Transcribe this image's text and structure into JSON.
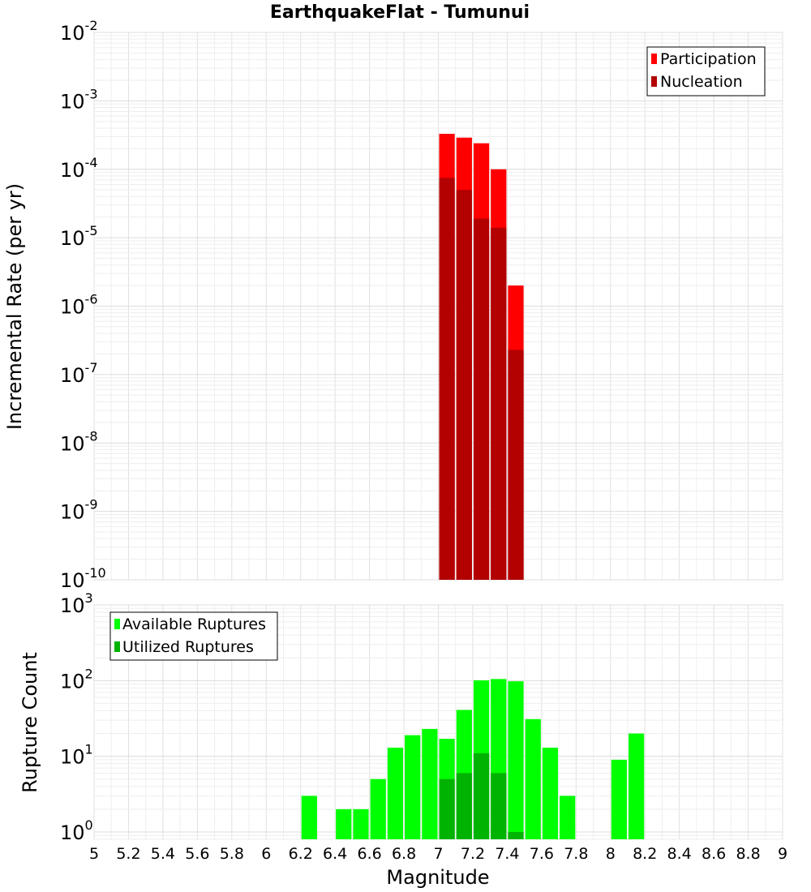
{
  "chart_data": [
    {
      "type": "bar",
      "title": "EarthquakeFlat - Tumunui",
      "ylabel": "Incremental Rate (per yr)",
      "xlabel": "",
      "yscale": "log",
      "ylim": [
        1e-10,
        0.01
      ],
      "xlim": [
        5,
        9
      ],
      "bin_width": 0.1,
      "y_ticks": [
        {
          "base": "10",
          "exp": "-10",
          "value": 1e-10
        },
        {
          "base": "10",
          "exp": "-9",
          "value": 1e-09
        },
        {
          "base": "10",
          "exp": "-8",
          "value": 1e-08
        },
        {
          "base": "10",
          "exp": "-7",
          "value": 1e-07
        },
        {
          "base": "10",
          "exp": "-6",
          "value": 1e-06
        },
        {
          "base": "10",
          "exp": "-5",
          "value": 1e-05
        },
        {
          "base": "10",
          "exp": "-4",
          "value": 0.0001
        },
        {
          "base": "10",
          "exp": "-3",
          "value": 0.001
        },
        {
          "base": "10",
          "exp": "-2",
          "value": 0.01
        }
      ],
      "legend": {
        "position": "top-right"
      },
      "series": [
        {
          "name": "Participation",
          "color": "#ff0000",
          "x": [
            7.05,
            7.15,
            7.25,
            7.35,
            7.45
          ],
          "values": [
            0.00033,
            0.00029,
            0.00024,
            0.0001,
            2e-06
          ]
        },
        {
          "name": "Nucleation",
          "color": "#b30000",
          "x": [
            7.05,
            7.15,
            7.25,
            7.35,
            7.45
          ],
          "values": [
            7.5e-05,
            5e-05,
            1.9e-05,
            1.4e-05,
            2.3e-07
          ]
        }
      ]
    },
    {
      "type": "bar",
      "title": "",
      "ylabel": "Rupture Count",
      "xlabel": "Magnitude",
      "yscale": "log",
      "ylim": [
        0.8,
        1000
      ],
      "xlim": [
        5,
        9
      ],
      "bin_width": 0.1,
      "x_ticks": [
        "5",
        "5.2",
        "5.4",
        "5.6",
        "5.8",
        "6",
        "6.2",
        "6.4",
        "6.6",
        "6.8",
        "7",
        "7.2",
        "7.4",
        "7.6",
        "7.8",
        "8",
        "8.2",
        "8.4",
        "8.6",
        "8.8",
        "9"
      ],
      "y_ticks": [
        {
          "base": "10",
          "exp": "0",
          "value": 1
        },
        {
          "base": "10",
          "exp": "1",
          "value": 10
        },
        {
          "base": "10",
          "exp": "2",
          "value": 100
        },
        {
          "base": "10",
          "exp": "3",
          "value": 1000
        }
      ],
      "legend": {
        "position": "top-left"
      },
      "series": [
        {
          "name": "Available Ruptures",
          "color": "#00ff00",
          "x": [
            6.25,
            6.45,
            6.55,
            6.65,
            6.75,
            6.85,
            6.95,
            7.05,
            7.15,
            7.25,
            7.35,
            7.45,
            7.55,
            7.65,
            7.75,
            8.05,
            8.15
          ],
          "values": [
            3,
            2,
            2,
            5,
            13,
            19,
            23,
            17,
            41,
            101,
            105,
            98,
            31,
            13,
            3,
            9,
            20
          ]
        },
        {
          "name": "Utilized Ruptures",
          "color": "#00b300",
          "x": [
            7.05,
            7.15,
            7.25,
            7.35,
            7.45
          ],
          "values": [
            5,
            6,
            11,
            6,
            1
          ]
        }
      ]
    }
  ]
}
